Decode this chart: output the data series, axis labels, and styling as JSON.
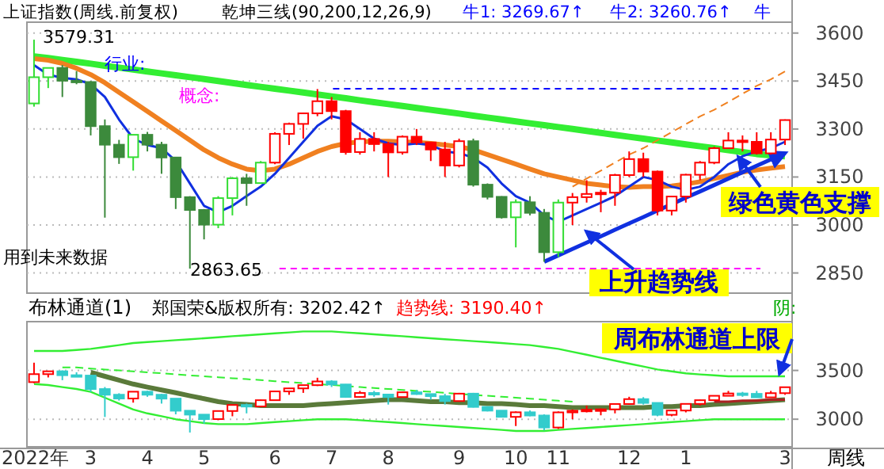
{
  "chart_data": [
    {
      "type": "candlestick",
      "title": "上证指数(周线.前复权)",
      "subtitle": "乾坤三线(90,200,12,26,9)",
      "categories": [
        null,
        null,
        null,
        null,
        null,
        null,
        null,
        null,
        null,
        null,
        null,
        null,
        null,
        null,
        null,
        null,
        null,
        null,
        null,
        null,
        null,
        null,
        null,
        null,
        null,
        null,
        null,
        null,
        null,
        null,
        null,
        null,
        null,
        null,
        null,
        null,
        null,
        null,
        null,
        null,
        null,
        null,
        null,
        null,
        null,
        null,
        null,
        null,
        null,
        null,
        null,
        null,
        null,
        null
      ],
      "ohlc": [
        [
          3380,
          3579.31,
          3370,
          3462
        ],
        [
          3462,
          3491,
          3428,
          3491
        ],
        [
          3491,
          3500,
          3400,
          3451
        ],
        [
          3451,
          3481,
          3440,
          3447
        ],
        [
          3447,
          3450,
          3280,
          3309
        ],
        [
          3309,
          3330,
          3023,
          3251
        ],
        [
          3251,
          3266,
          3191,
          3212
        ],
        [
          3212,
          3282,
          3170,
          3282
        ],
        [
          3282,
          3291,
          3230,
          3251
        ],
        [
          3251,
          3260,
          3160,
          3211
        ],
        [
          3211,
          3213,
          3050,
          3087
        ],
        [
          3087,
          3090,
          2863.65,
          3047
        ],
        [
          3047,
          3050,
          2955,
          3001
        ],
        [
          3001,
          3090,
          2990,
          3084
        ],
        [
          3084,
          3150,
          3030,
          3146
        ],
        [
          3146,
          3160,
          3060,
          3131
        ],
        [
          3131,
          3200,
          3130,
          3195
        ],
        [
          3195,
          3290,
          3190,
          3285
        ],
        [
          3285,
          3320,
          3250,
          3316
        ],
        [
          3316,
          3350,
          3270,
          3349
        ],
        [
          3349,
          3425,
          3340,
          3387
        ],
        [
          3387,
          3400,
          3330,
          3356
        ],
        [
          3356,
          3360,
          3220,
          3228
        ],
        [
          3228,
          3290,
          3220,
          3269
        ],
        [
          3269,
          3290,
          3230,
          3253
        ],
        [
          3253,
          3260,
          3150,
          3227
        ],
        [
          3227,
          3280,
          3220,
          3276
        ],
        [
          3276,
          3300,
          3250,
          3258
        ],
        [
          3258,
          3260,
          3200,
          3236
        ],
        [
          3236,
          3260,
          3150,
          3186
        ],
        [
          3186,
          3270,
          3180,
          3262
        ],
        [
          3262,
          3270,
          3120,
          3126
        ],
        [
          3126,
          3130,
          3080,
          3088
        ],
        [
          3088,
          3090,
          3020,
          3024
        ],
        [
          3024,
          3080,
          2930,
          3071
        ],
        [
          3071,
          3090,
          3030,
          3038
        ],
        [
          3038,
          3050,
          2885,
          2915
        ],
        [
          2915,
          3080,
          2900,
          3070
        ],
        [
          3070,
          3100,
          3000,
          3087
        ],
        [
          3087,
          3140,
          3070,
          3097
        ],
        [
          3097,
          3110,
          3040,
          3101
        ],
        [
          3101,
          3160,
          3060,
          3156
        ],
        [
          3156,
          3230,
          3150,
          3206
        ],
        [
          3206,
          3226,
          3150,
          3167
        ],
        [
          3167,
          3170,
          3030,
          3045
        ],
        [
          3045,
          3090,
          3030,
          3089
        ],
        [
          3089,
          3160,
          3070,
          3157
        ],
        [
          3157,
          3200,
          3140,
          3195
        ],
        [
          3195,
          3245,
          3190,
          3240
        ],
        [
          3240,
          3290,
          3240,
          3264
        ],
        [
          3264,
          3280,
          3230,
          3260
        ],
        [
          3260,
          3290,
          3220,
          3224
        ],
        [
          3224,
          3290,
          3220,
          3267
        ],
        [
          3267,
          3330,
          3250,
          3328
        ]
      ],
      "colors": [
        "#33dd33",
        "#33dd33",
        "#3c8a3c",
        "#3c8a3c",
        "#3c8a3c",
        "#3c8a3c",
        "#3c8a3c",
        "#33dd33",
        "#3c8a3c",
        "#3c8a3c",
        "#3c8a3c",
        "#3c8a3c",
        "#3c8a3c",
        "#33dd33",
        "#33dd33",
        "#3c8a3c",
        "#33dd33",
        "#ff0000",
        "#ff0000",
        "#ff0000",
        "#ff0000",
        "#ff0000",
        "#ff0000",
        "#ff0000",
        "#ff0000",
        "#ff0000",
        "#ff0000",
        "#ff0000",
        "#ff0000",
        "#ff0000",
        "#ff0000",
        "#3c8a3c",
        "#3c8a3c",
        "#3c8a3c",
        "#33dd33",
        "#3c8a3c",
        "#3c8a3c",
        "#33dd33",
        "#ff0000",
        "#ff0000",
        "#ff0000",
        "#ff0000",
        "#ff0000",
        "#ff0000",
        "#ff0000",
        "#ff0000",
        "#ff0000",
        "#ff0000",
        "#ff0000",
        "#ff0000",
        "#ff0000",
        "#ff0000",
        "#ff0000",
        "#ff0000"
      ],
      "series": [
        {
          "type": "line",
          "color": "#33ee33",
          "values": [
            3527,
            3522,
            3516,
            3510,
            3504,
            3498,
            3492,
            3486,
            3480,
            3474,
            3468,
            3462,
            3456,
            3450,
            3444,
            3438,
            3432,
            3426,
            3420,
            3414,
            3408,
            3402,
            3396,
            3390,
            3384,
            3378,
            3372,
            3366,
            3360,
            3354,
            3348,
            3342,
            3336,
            3330,
            3324,
            3318,
            3312,
            3306,
            3300,
            3294,
            3288,
            3282,
            3276,
            3270,
            3264,
            3258,
            3252,
            3246,
            3240,
            3234,
            3228,
            3222,
            3218,
            3215
          ]
        },
        {
          "type": "line",
          "color": "#f08020",
          "values": [
            3520,
            3515,
            3505,
            3490,
            3470,
            3445,
            3415,
            3385,
            3355,
            3325,
            3295,
            3265,
            3235,
            3210,
            3190,
            3175,
            3170,
            3175,
            3190,
            3210,
            3230,
            3245,
            3255,
            3260,
            3262,
            3262,
            3260,
            3258,
            3255,
            3250,
            3245,
            3235,
            3220,
            3205,
            3190,
            3175,
            3160,
            3150,
            3140,
            3130,
            3125,
            3120,
            3118,
            3120,
            3120,
            3122,
            3128,
            3135,
            3145,
            3155,
            3165,
            3172,
            3178,
            3183
          ]
        },
        {
          "type": "line",
          "color": "#1030e0",
          "values": [
            3500,
            3470,
            3460,
            3455,
            3440,
            3400,
            3330,
            3270,
            3250,
            3240,
            3200,
            3130,
            3060,
            3040,
            3060,
            3090,
            3120,
            3160,
            3210,
            3260,
            3310,
            3340,
            3330,
            3300,
            3270,
            3255,
            3250,
            3255,
            3250,
            3230,
            3225,
            3210,
            3180,
            3130,
            3090,
            3070,
            3030,
            3010,
            3030,
            3050,
            3070,
            3090,
            3120,
            3150,
            3140,
            3120,
            3110,
            3120,
            3150,
            3190,
            3215,
            3230,
            3240,
            3260
          ]
        },
        {
          "type": "line",
          "color": "#1030e0",
          "values": [
            null,
            null,
            null,
            null,
            null,
            null,
            null,
            null,
            null,
            null,
            null,
            null,
            null,
            null,
            null,
            null,
            null,
            null,
            null,
            null,
            null,
            null,
            null,
            null,
            null,
            null,
            null,
            null,
            null,
            null,
            null,
            null,
            null,
            null,
            null,
            null,
            2885,
            2905,
            2925,
            2945,
            2965,
            2985,
            3005,
            3025,
            3045,
            3065,
            3085,
            3105,
            3125,
            3145,
            3165,
            3185,
            3205,
            3225
          ]
        },
        {
          "type": "line",
          "color": "#f08020",
          "line_style": "dashed",
          "values": [
            null,
            null,
            null,
            null,
            null,
            null,
            null,
            null,
            null,
            null,
            null,
            null,
            null,
            null,
            null,
            null,
            null,
            null,
            null,
            null,
            null,
            null,
            null,
            null,
            null,
            null,
            null,
            null,
            null,
            null,
            null,
            null,
            null,
            null,
            null,
            null,
            null,
            null,
            3120,
            3145,
            3170,
            3195,
            3220,
            3240,
            3265,
            3290,
            3315,
            3340,
            3360,
            3385,
            3410,
            3435,
            3455,
            3480
          ]
        }
      ],
      "ylim": [
        2787,
        3634
      ],
      "yticks": [
        2850,
        3000,
        3150,
        3300,
        3450,
        3600
      ],
      "grid": "y",
      "tick_labels": "y",
      "ref_lines": [
        {
          "axis": "y",
          "value": 3426,
          "color": "#0000ff",
          "line_style": "dashed"
        },
        {
          "axis": "y",
          "value": 2863.65,
          "color": "#ff00ff",
          "line_style": "dashed"
        }
      ],
      "annotations": [
        "牛1: 3269.67↑",
        "牛2: 3260.76↑",
        "牛",
        "3579.31",
        "行业:",
        "概念:",
        "用到未来数据",
        "2863.65",
        "绿色黄色支撑",
        "上升趋势线"
      ]
    },
    {
      "type": "candlestick",
      "title": "布林通道(1)",
      "categories": [
        "2022年",
        null,
        null,
        null,
        "3",
        null,
        null,
        null,
        "4",
        null,
        null,
        null,
        "5",
        null,
        null,
        null,
        null,
        "6",
        null,
        null,
        null,
        "7",
        null,
        null,
        null,
        "8",
        null,
        null,
        null,
        null,
        "9",
        null,
        null,
        null,
        "10",
        null,
        null,
        "11",
        null,
        null,
        null,
        null,
        "12",
        null,
        null,
        null,
        "1",
        null,
        null,
        null,
        null,
        null,
        null,
        "3"
      ],
      "ohlc": [
        [
          3380,
          3579.31,
          3370,
          3462
        ],
        [
          3462,
          3491,
          3428,
          3491
        ],
        [
          3491,
          3500,
          3400,
          3451
        ],
        [
          3451,
          3481,
          3440,
          3447
        ],
        [
          3447,
          3450,
          3280,
          3309
        ],
        [
          3309,
          3330,
          3023,
          3251
        ],
        [
          3251,
          3266,
          3191,
          3212
        ],
        [
          3212,
          3282,
          3170,
          3282
        ],
        [
          3282,
          3291,
          3230,
          3251
        ],
        [
          3251,
          3260,
          3160,
          3211
        ],
        [
          3211,
          3213,
          3050,
          3087
        ],
        [
          3087,
          3090,
          2863.65,
          3047
        ],
        [
          3047,
          3050,
          2955,
          3001
        ],
        [
          3001,
          3090,
          2990,
          3084
        ],
        [
          3084,
          3150,
          3030,
          3146
        ],
        [
          3146,
          3160,
          3060,
          3131
        ],
        [
          3131,
          3200,
          3130,
          3195
        ],
        [
          3195,
          3290,
          3190,
          3285
        ],
        [
          3285,
          3320,
          3250,
          3316
        ],
        [
          3316,
          3350,
          3270,
          3349
        ],
        [
          3349,
          3425,
          3340,
          3387
        ],
        [
          3387,
          3400,
          3330,
          3356
        ],
        [
          3356,
          3360,
          3220,
          3228
        ],
        [
          3228,
          3290,
          3220,
          3269
        ],
        [
          3269,
          3290,
          3230,
          3253
        ],
        [
          3253,
          3260,
          3150,
          3227
        ],
        [
          3227,
          3280,
          3220,
          3276
        ],
        [
          3276,
          3300,
          3250,
          3258
        ],
        [
          3258,
          3260,
          3200,
          3236
        ],
        [
          3236,
          3260,
          3150,
          3186
        ],
        [
          3186,
          3270,
          3180,
          3262
        ],
        [
          3262,
          3270,
          3120,
          3126
        ],
        [
          3126,
          3130,
          3080,
          3088
        ],
        [
          3088,
          3090,
          3020,
          3024
        ],
        [
          3024,
          3080,
          2930,
          3071
        ],
        [
          3071,
          3090,
          3030,
          3038
        ],
        [
          3038,
          3050,
          2885,
          2915
        ],
        [
          2915,
          3080,
          2900,
          3070
        ],
        [
          3070,
          3100,
          3000,
          3087
        ],
        [
          3087,
          3140,
          3070,
          3097
        ],
        [
          3097,
          3110,
          3040,
          3101
        ],
        [
          3101,
          3160,
          3060,
          3156
        ],
        [
          3156,
          3230,
          3150,
          3206
        ],
        [
          3206,
          3226,
          3150,
          3167
        ],
        [
          3167,
          3170,
          3030,
          3045
        ],
        [
          3045,
          3090,
          3030,
          3089
        ],
        [
          3089,
          3160,
          3070,
          3157
        ],
        [
          3157,
          3200,
          3140,
          3195
        ],
        [
          3195,
          3245,
          3190,
          3240
        ],
        [
          3240,
          3290,
          3240,
          3264
        ],
        [
          3264,
          3280,
          3230,
          3260
        ],
        [
          3260,
          3290,
          3220,
          3224
        ],
        [
          3224,
          3290,
          3220,
          3267
        ],
        [
          3267,
          3330,
          3250,
          3328
        ]
      ],
      "colors": [
        "#ff0000",
        "#ff0000",
        "#33cccc",
        "#33cccc",
        "#33cccc",
        "#33cccc",
        "#33cccc",
        "#ff0000",
        "#33cccc",
        "#33cccc",
        "#33cccc",
        "#33cccc",
        "#33cccc",
        "#ff0000",
        "#ff0000",
        "#33cccc",
        "#ff0000",
        "#ff0000",
        "#ff0000",
        "#ff0000",
        "#ff0000",
        "#33cccc",
        "#33cccc",
        "#ff0000",
        "#33cccc",
        "#33cccc",
        "#ff0000",
        "#33cccc",
        "#33cccc",
        "#33cccc",
        "#ff0000",
        "#33cccc",
        "#33cccc",
        "#33cccc",
        "#ff0000",
        "#33cccc",
        "#33cccc",
        "#ff0000",
        "#ff0000",
        "#ff0000",
        "#ff0000",
        "#ff0000",
        "#ff0000",
        "#33cccc",
        "#33cccc",
        "#ff0000",
        "#ff0000",
        "#ff0000",
        "#ff0000",
        "#ff0000",
        "#33cccc",
        "#33cccc",
        "#ff0000",
        "#ff0000"
      ],
      "series": [
        {
          "type": "line",
          "color": "#33ee33",
          "values": [
            3700,
            3700,
            3700,
            3710,
            3720,
            3740,
            3760,
            3780,
            3790,
            3800,
            3810,
            3820,
            3830,
            3840,
            3850,
            3860,
            3870,
            3880,
            3890,
            3900,
            3900,
            3900,
            3890,
            3880,
            3870,
            3860,
            3850,
            3840,
            3830,
            3820,
            3810,
            3800,
            3790,
            3780,
            3770,
            3760,
            3740,
            3720,
            3690,
            3660,
            3630,
            3600,
            3570,
            3540,
            3510,
            3490,
            3470,
            3460,
            3450,
            3440,
            3440,
            3440,
            3440,
            3440
          ]
        },
        {
          "type": "line",
          "color": "#5a7a3a",
          "values": [
            null,
            null,
            null,
            null,
            3480,
            3440,
            3400,
            3360,
            3330,
            3300,
            3270,
            3240,
            3210,
            3180,
            3160,
            3150,
            3140,
            3140,
            3140,
            3140,
            3150,
            3160,
            3170,
            3180,
            3190,
            3200,
            3200,
            3190,
            3180,
            3180,
            3170,
            3170,
            3160,
            3160,
            3150,
            3140,
            3140,
            3130,
            3120,
            3120,
            3120,
            3120,
            3120,
            3120,
            3130,
            3130,
            3140,
            3140,
            3150,
            3160,
            3170,
            3180,
            3190,
            3200
          ]
        },
        {
          "type": "line",
          "color": "#33ee33",
          "values": [
            3360,
            3350,
            3330,
            3310,
            3280,
            3220,
            3160,
            3100,
            3060,
            3030,
            3000,
            2980,
            2960,
            2950,
            2950,
            2950,
            2960,
            2970,
            2980,
            2990,
            3000,
            3000,
            3000,
            2990,
            2980,
            2970,
            2960,
            2950,
            2940,
            2930,
            2920,
            2910,
            2900,
            2890,
            2880,
            2880,
            2880,
            2890,
            2900,
            2910,
            2920,
            2930,
            2940,
            2950,
            2960,
            2970,
            2980,
            2990,
            3000,
            3000,
            3000,
            3000,
            3000,
            3000
          ]
        },
        {
          "type": "line",
          "color": "#33ee33",
          "line_style": "dashed",
          "values": [
            null,
            null,
            3530,
            3530,
            3520,
            3510,
            3500,
            3490,
            3480,
            3470,
            3460,
            3450,
            3440,
            3430,
            3420,
            3410,
            3400,
            3390,
            3380,
            3370,
            3360,
            3350,
            3340,
            3330,
            3320,
            3310,
            3300,
            3290,
            3280,
            3270,
            3260,
            3250,
            3240,
            3230,
            3220,
            3210,
            3200,
            3190,
            3180,
            null,
            null,
            null,
            null,
            null,
            null,
            null,
            null,
            null,
            null,
            null,
            null,
            null,
            null,
            null
          ]
        },
        {
          "type": "line",
          "color": "#aa2222",
          "values": [
            null,
            null,
            null,
            null,
            null,
            null,
            null,
            null,
            null,
            null,
            null,
            null,
            null,
            null,
            null,
            null,
            null,
            null,
            null,
            null,
            null,
            null,
            null,
            null,
            null,
            null,
            null,
            null,
            null,
            null,
            null,
            null,
            null,
            null,
            null,
            null,
            null,
            null,
            null,
            null,
            null,
            null,
            null,
            null,
            null,
            null,
            null,
            null,
            3180,
            3180,
            3190,
            3190,
            3200,
            3200
          ]
        }
      ],
      "ylim": [
        2717,
        4000
      ],
      "yticks": [
        3000,
        3500
      ],
      "grid": "y",
      "annotations": [
        "郑国荣&版权所有: 3202.42↑",
        "趋势线: 3190.40↑",
        "阴:",
        "周布林通道上限",
        "周线"
      ]
    }
  ]
}
